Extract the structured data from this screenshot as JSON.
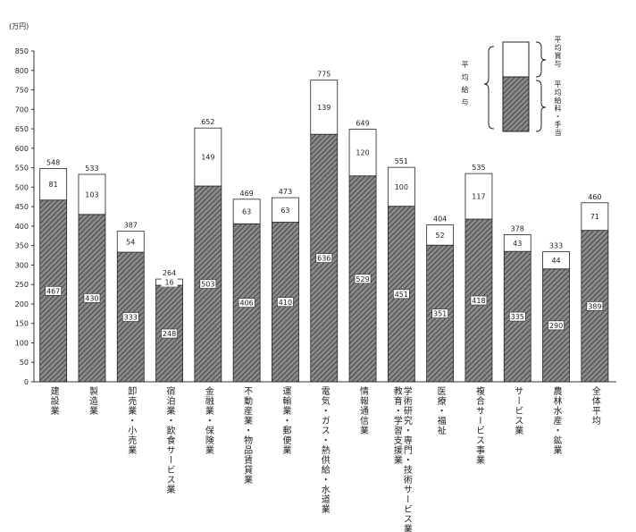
{
  "chart_data": {
    "type": "stacked_bar",
    "y_unit": "(万円)",
    "categories": [
      "建設業",
      "製造業",
      "卸売業・小売業",
      "宿泊業・飲食サービス業",
      "金融業・保険業",
      "不動産業・物品賃貸業",
      "運輸業・郵便業",
      "電気・ガス・熱供給・水道業",
      "情報通信業",
      "学術研究・専門・技術サービス業\n教育・学習支援業",
      "医療・福祉",
      "複合サービス事業",
      "サービス業",
      "農林水産・鉱業",
      "全体平均"
    ],
    "series": [
      {
        "name": "平均給料・手当",
        "color": "#6e6e6e",
        "values": [
          467,
          430,
          333,
          248,
          503,
          406,
          410,
          636,
          529,
          451,
          351,
          418,
          335,
          290,
          389
        ]
      },
      {
        "name": "平均賞与",
        "color": "#ffffff",
        "values": [
          81,
          103,
          54,
          16,
          149,
          63,
          63,
          139,
          120,
          100,
          52,
          117,
          43,
          44,
          71
        ]
      }
    ],
    "totals": [
      548,
      533,
      387,
      264,
      652,
      469,
      473,
      775,
      649,
      551,
      404,
      535,
      378,
      333,
      460
    ],
    "legend_group": "平均給与",
    "ylim": [
      0,
      850
    ],
    "yticks": [
      0,
      50,
      100,
      150,
      200,
      250,
      300,
      350,
      400,
      450,
      500,
      550,
      600,
      650,
      700,
      750,
      800,
      850
    ],
    "grid": false
  }
}
